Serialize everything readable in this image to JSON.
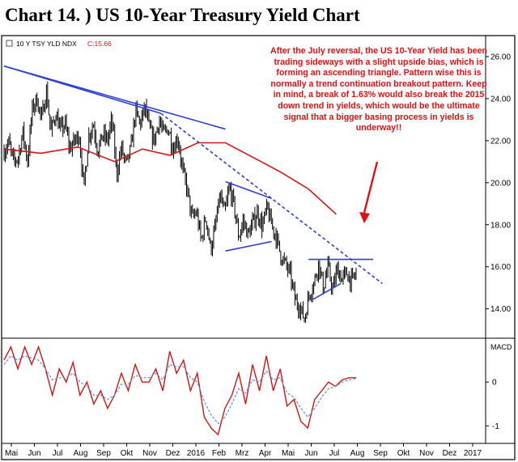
{
  "title": "Chart 14. ) US 10-Year Treasury Yield Chart",
  "chart_data": {
    "type": "line",
    "ticker": {
      "label": "10 Y TSY YLD NDX",
      "value": "C:15.66"
    },
    "annotation": "After the July reversal, the US 10-Year Yield has been trading sideways with a slight upside bias, which is forming an ascending triangle. Pattern wise this is normally a trend continuation breakout pattern. Keep in mind, a break of 1.63% would also break the 2015 down trend in yields, which would be the ultimate signal that a bigger basing process in yields is underway!!",
    "price_panel": {
      "ylim": [
        12.6,
        27.0
      ],
      "y_ticks": [
        "26.00",
        "24.00",
        "22.00",
        "20.00",
        "18.00",
        "16.00",
        "14.00"
      ],
      "price_closes": [
        21.5,
        21.9,
        21.0,
        21.2,
        22.4,
        21.0,
        23.5,
        24.0,
        23.0,
        24.4,
        22.4,
        23.3,
        22.5,
        22.8,
        21.6,
        22.0,
        22.3,
        19.7,
        22.2,
        22.8,
        21.5,
        22.3,
        22.0,
        23.0,
        20.4,
        21.7,
        20.8,
        21.6,
        23.4,
        22.8,
        23.6,
        22.5,
        22.0,
        23.0,
        22.3,
        22.6,
        21.6,
        22.2,
        20.6,
        19.7,
        18.3,
        18.6,
        17.2,
        18.4,
        16.8,
        17.9,
        19.4,
        18.5,
        19.8,
        18.9,
        17.4,
        18.2,
        17.5,
        18.1,
        18.6,
        17.9,
        18.8,
        18.0,
        17.4,
        16.5,
        16.1,
        15.6,
        14.4,
        14.1,
        13.5,
        14.7,
        15.2,
        16.2,
        15.0,
        16.0,
        14.9,
        15.9,
        15.4,
        15.7,
        15.3,
        15.66
      ],
      "moving_average": {
        "x_fraction": [
          0.0,
          0.08,
          0.16,
          0.24,
          0.3,
          0.36,
          0.42,
          0.48,
          0.54,
          0.6,
          0.66,
          0.72
        ],
        "values": [
          21.6,
          21.4,
          21.7,
          21.0,
          21.6,
          21.3,
          21.9,
          21.9,
          21.2,
          20.5,
          19.7,
          18.5
        ]
      },
      "trendline_2015_downtrend": {
        "start": {
          "x_fraction": 0.0,
          "value": 25.55
        },
        "solid_end": {
          "x_fraction": 0.34,
          "value": 23.3
        },
        "dashed_end": {
          "x_fraction": 0.82,
          "value": 15.2
        }
      },
      "second_downtrend": {
        "start": {
          "x_fraction": 0.0,
          "value": 25.55
        },
        "end": {
          "x_fraction": 0.48,
          "value": 22.55
        }
      },
      "triangle_upper": {
        "start": {
          "x_fraction": 0.48,
          "value": 20.05
        },
        "end": {
          "x_fraction": 0.58,
          "value": 19.25
        }
      },
      "triangle_lower": {
        "start": {
          "x_fraction": 0.48,
          "value": 16.75
        },
        "end": {
          "x_fraction": 0.58,
          "value": 17.2
        }
      },
      "resistance_line": {
        "start": {
          "x_fraction": 0.66,
          "value": 16.35
        },
        "end": {
          "x_fraction": 0.8,
          "value": 16.35
        }
      },
      "rising_support": {
        "start": {
          "x_fraction": 0.67,
          "value": 14.45
        },
        "end": {
          "x_fraction": 0.73,
          "value": 15.2
        }
      }
    },
    "macd_panel": {
      "label": "MACD",
      "ylim": [
        -1.4,
        1.0
      ],
      "y_ticks": [
        "0",
        "-1"
      ],
      "macd_line": [
        0.5,
        0.8,
        0.3,
        0.8,
        0.4,
        0.8,
        0.3,
        -0.3,
        0.3,
        0.0,
        0.45,
        -0.3,
        0.0,
        -0.5,
        -0.2,
        -0.6,
        -0.3,
        0.2,
        -0.2,
        0.4,
        0.0,
        0.0,
        0.3,
        -0.2,
        0.7,
        0.2,
        0.5,
        -0.2,
        0.2,
        -0.8,
        -1.05,
        -1.2,
        -0.6,
        -0.3,
        0.2,
        -0.5,
        0.4,
        -0.2,
        0.6,
        -0.2,
        0.3,
        -0.55,
        -0.4,
        -0.9,
        -1.05,
        -0.4,
        -0.2,
        0.0,
        -0.1,
        0.05,
        0.1,
        0.1
      ],
      "signal_line": [
        0.4,
        0.6,
        0.5,
        0.6,
        0.55,
        0.5,
        0.3,
        0.05,
        0.1,
        0.1,
        0.2,
        0.0,
        -0.1,
        -0.3,
        -0.3,
        -0.4,
        -0.3,
        -0.05,
        -0.05,
        0.15,
        0.1,
        0.1,
        0.2,
        0.05,
        0.4,
        0.35,
        0.35,
        0.1,
        0.0,
        -0.45,
        -0.75,
        -0.95,
        -0.8,
        -0.5,
        -0.15,
        -0.25,
        0.05,
        0.0,
        0.25,
        0.05,
        0.1,
        -0.25,
        -0.35,
        -0.6,
        -0.8,
        -0.6,
        -0.35,
        -0.15,
        -0.1,
        0.0,
        0.05,
        0.08
      ]
    },
    "x_tick_labels": [
      "Mai",
      "Jun",
      "Jul",
      "Aug",
      "Sep",
      "Okt",
      "Nov",
      "Dez",
      "2016",
      "Feb",
      "Mrz",
      "Apr",
      "Mai",
      "Jun",
      "Jul",
      "Aug",
      "Sep",
      "Okt",
      "Nov",
      "Dez",
      "2017"
    ],
    "colors": {
      "price": "#000000",
      "moving_average": "#d11414",
      "trendline": "#2a3fd6",
      "macd": "#d11414",
      "signal": "#5a8fd6",
      "annotation": "#e01010",
      "ticker_value": "#e01010"
    },
    "grid": false
  }
}
